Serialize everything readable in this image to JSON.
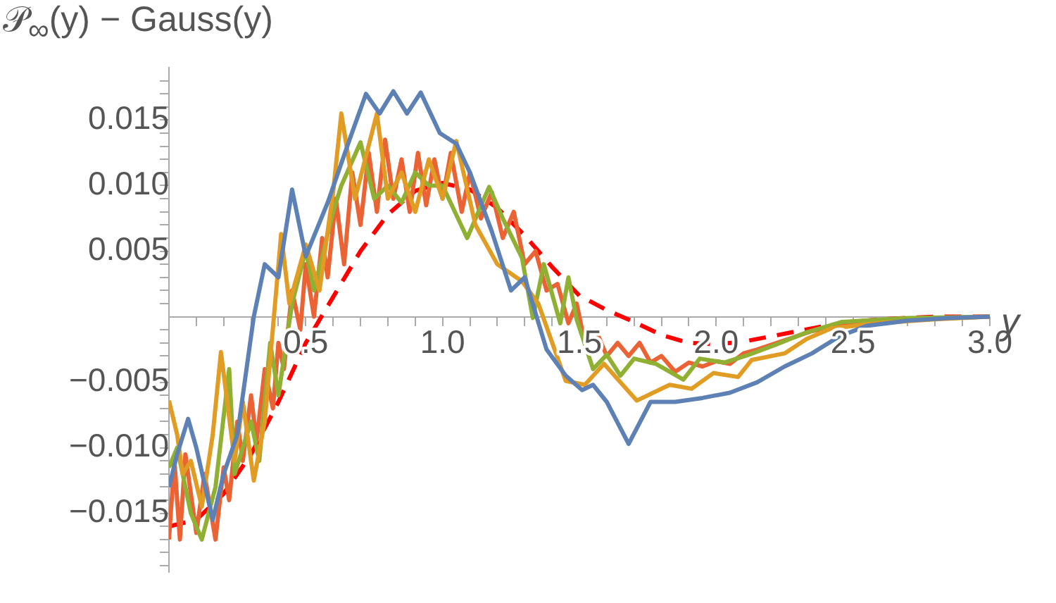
{
  "chart_data": {
    "type": "line",
    "ylabel": "𝒫$_{∞}$(y) − Gauss(y)",
    "xlabel": "y",
    "xlim": [
      0,
      3.0
    ],
    "ylim": [
      -0.0195,
      0.019
    ],
    "xticks": [
      {
        "value": 0.1,
        "label": null
      },
      {
        "value": 0.2,
        "label": null
      },
      {
        "value": 0.3,
        "label": null
      },
      {
        "value": 0.4,
        "label": null
      },
      0.5,
      {
        "value": 0.6,
        "label": null
      },
      {
        "value": 0.7,
        "label": null
      },
      {
        "value": 0.8,
        "label": null
      },
      {
        "value": 0.9,
        "label": null
      },
      {
        "value": 1,
        "label": "1.0"
      },
      {
        "value": 1.1,
        "label": null
      },
      {
        "value": 1.2,
        "label": null
      },
      {
        "value": 1.3,
        "label": null
      },
      {
        "value": 1.4,
        "label": null
      },
      1.5,
      {
        "value": 1.6,
        "label": null
      },
      {
        "value": 1.7,
        "label": null
      },
      {
        "value": 1.8,
        "label": null
      },
      {
        "value": 1.9,
        "label": null
      },
      {
        "value": 2,
        "label": "2.0"
      },
      {
        "value": 2.1,
        "label": null
      },
      {
        "value": 2.2,
        "label": null
      },
      {
        "value": 2.3,
        "label": null
      },
      {
        "value": 2.4,
        "label": null
      },
      2.5,
      {
        "value": 2.6,
        "label": null
      },
      {
        "value": 2.7,
        "label": null
      },
      {
        "value": 2.8,
        "label": null
      },
      {
        "value": 2.9,
        "label": null
      },
      {
        "value": 3,
        "label": "3.0"
      }
    ],
    "yticks": [
      {
        "value": -0.019,
        "label": null
      },
      {
        "value": -0.018,
        "label": null
      },
      {
        "value": -0.017,
        "label": null
      },
      {
        "value": -0.016,
        "label": null
      },
      {
        "value": -0.015,
        "label": "−0.015"
      },
      {
        "value": -0.014,
        "label": null
      },
      {
        "value": -0.013,
        "label": null
      },
      {
        "value": -0.012,
        "label": null
      },
      {
        "value": -0.011,
        "label": null
      },
      {
        "value": -0.01,
        "label": "−0.010"
      },
      {
        "value": -0.009,
        "label": null
      },
      {
        "value": -0.008,
        "label": null
      },
      {
        "value": -0.007,
        "label": null
      },
      {
        "value": -0.006,
        "label": null
      },
      {
        "value": -0.005,
        "label": "−0.005"
      },
      {
        "value": -0.004,
        "label": null
      },
      {
        "value": -0.003,
        "label": null
      },
      {
        "value": -0.002,
        "label": null
      },
      {
        "value": -0.001,
        "label": null
      },
      {
        "value": 0.001,
        "label": null
      },
      {
        "value": 0.002,
        "label": null
      },
      {
        "value": 0.003,
        "label": null
      },
      {
        "value": 0.004,
        "label": null
      },
      0.005,
      {
        "value": 0.006,
        "label": null
      },
      {
        "value": 0.007,
        "label": null
      },
      {
        "value": 0.008,
        "label": null
      },
      {
        "value": 0.009,
        "label": null
      },
      {
        "value": 0.01,
        "label": "0.010"
      },
      {
        "value": 0.011,
        "label": null
      },
      {
        "value": 0.012,
        "label": null
      },
      {
        "value": 0.013,
        "label": null
      },
      {
        "value": 0.014,
        "label": null
      },
      0.015,
      {
        "value": 0.016,
        "label": null
      },
      {
        "value": 0.017,
        "label": null
      },
      {
        "value": 0.018,
        "label": null
      }
    ],
    "grid": false,
    "legend": false,
    "marker": "none",
    "line_style": "solid",
    "series": [
      {
        "color": "#5e81b5",
        "x": [
          0,
          0.03,
          0.07,
          0.1,
          0.16,
          0.2,
          0.25,
          0.31,
          0.35,
          0.4,
          0.45,
          0.5,
          0.58,
          0.66,
          0.72,
          0.77,
          0.82,
          0.87,
          0.92,
          0.99,
          1.05,
          1.1,
          1.18,
          1.25,
          1.3,
          1.38,
          1.45,
          1.51,
          1.55,
          1.6,
          1.68,
          1.76,
          1.85,
          1.95,
          2.05,
          2.15,
          2.25,
          2.35,
          2.45,
          2.55,
          2.7,
          2.85,
          3.0
        ],
        "values": [
          -0.013,
          -0.0105,
          -0.0078,
          -0.01,
          -0.0155,
          -0.012,
          -0.009,
          0,
          0.004,
          0.003,
          0.0097,
          0.0046,
          0.0087,
          0.0135,
          0.017,
          0.0155,
          0.0172,
          0.0155,
          0.0171,
          0.014,
          0.0132,
          0.011,
          0.0065,
          0.002,
          0.003,
          -0.0025,
          -0.0045,
          -0.0056,
          -0.0052,
          -0.0065,
          -0.0097,
          -0.0065,
          -0.0065,
          -0.0062,
          -0.0058,
          -0.005,
          -0.0038,
          -0.0028,
          -0.0015,
          -0.0007,
          -0.0003,
          -0.0001,
          0
        ]
      },
      {
        "color": "#e19c24",
        "x": [
          0,
          0.03,
          0.05,
          0.08,
          0.12,
          0.16,
          0.19,
          0.24,
          0.27,
          0.31,
          0.35,
          0.41,
          0.44,
          0.5,
          0.55,
          0.6,
          0.63,
          0.68,
          0.76,
          0.8,
          0.85,
          0.9,
          0.95,
          1.0,
          1.05,
          1.12,
          1.2,
          1.29,
          1.35,
          1.45,
          1.52,
          1.59,
          1.71,
          1.83,
          1.91,
          1.99,
          2.08,
          2.13,
          2.25,
          2.33,
          2.42,
          2.59,
          2.8,
          3.0
        ],
        "values": [
          -0.0064,
          -0.009,
          -0.012,
          -0.011,
          -0.0145,
          -0.009,
          -0.0027,
          -0.011,
          -0.0065,
          -0.0125,
          -0.008,
          0.0063,
          0.001,
          0.0055,
          0.002,
          0.0095,
          0.0155,
          0.009,
          0.0155,
          0.009,
          0.011,
          0.008,
          0.012,
          0.009,
          0.0134,
          0.007,
          0.004,
          0.0027,
          0.001,
          -0.0049,
          -0.0052,
          -0.0036,
          -0.0064,
          -0.0052,
          -0.0055,
          -0.0043,
          -0.0046,
          -0.0033,
          -0.0028,
          -0.0017,
          -0.0009,
          -0.0005,
          -0.0002,
          0
        ]
      },
      {
        "color": "#8fb032",
        "x": [
          0,
          0.03,
          0.08,
          0.12,
          0.17,
          0.22,
          0.24,
          0.3,
          0.33,
          0.37,
          0.4,
          0.45,
          0.5,
          0.53,
          0.6,
          0.63,
          0.7,
          0.75,
          0.8,
          0.85,
          0.9,
          0.95,
          1.0,
          1.09,
          1.17,
          1.22,
          1.29,
          1.33,
          1.37,
          1.43,
          1.46,
          1.49,
          1.55,
          1.6,
          1.65,
          1.7,
          1.78,
          1.83,
          1.88,
          1.94,
          2.03,
          2.12,
          2.21,
          2.33,
          2.46,
          2.7,
          3.0
        ],
        "values": [
          -0.0115,
          -0.01,
          -0.015,
          -0.017,
          -0.013,
          -0.004,
          -0.012,
          -0.008,
          -0.011,
          -0.002,
          -0.006,
          0.001,
          0.0051,
          0.002,
          0.008,
          0.01,
          0.0133,
          0.009,
          0.01,
          0.0087,
          0.011,
          0.01,
          0.01,
          0.006,
          0.0099,
          0.0075,
          0.0045,
          -0.0001,
          0.004,
          -0.0005,
          0.003,
          -0.0002,
          -0.004,
          -0.0029,
          -0.0045,
          -0.0032,
          -0.0036,
          -0.0042,
          -0.0048,
          -0.0032,
          -0.0035,
          -0.0029,
          -0.0022,
          -0.0012,
          -0.0004,
          -0.0001,
          0
        ]
      },
      {
        "color": "#eb6235",
        "x": [
          0,
          0.02,
          0.04,
          0.06,
          0.1,
          0.13,
          0.17,
          0.2,
          0.22,
          0.25,
          0.27,
          0.3,
          0.32,
          0.35,
          0.38,
          0.4,
          0.42,
          0.45,
          0.48,
          0.5,
          0.53,
          0.56,
          0.58,
          0.61,
          0.64,
          0.67,
          0.7,
          0.73,
          0.76,
          0.79,
          0.82,
          0.85,
          0.88,
          0.91,
          0.94,
          0.97,
          1.0,
          1.03,
          1.07,
          1.1,
          1.14,
          1.18,
          1.22,
          1.26,
          1.3,
          1.34,
          1.38,
          1.42,
          1.46,
          1.49,
          1.52,
          1.56,
          1.6,
          1.64,
          1.68,
          1.72,
          1.76,
          1.8,
          1.85,
          1.9,
          1.95,
          2.0,
          2.05,
          2.1,
          2.15,
          2.25,
          2.35,
          2.5,
          2.7,
          3.0
        ],
        "values": [
          -0.017,
          -0.011,
          -0.017,
          -0.0105,
          -0.0165,
          -0.012,
          -0.017,
          -0.0115,
          -0.014,
          -0.008,
          -0.011,
          -0.006,
          -0.0095,
          -0.004,
          -0.007,
          -0.002,
          -0.004,
          0.002,
          -0.001,
          0.004,
          0,
          0.006,
          0.003,
          0.009,
          0.004,
          0.011,
          0.007,
          0.0125,
          0.008,
          0.0135,
          0.009,
          0.012,
          0.008,
          0.0125,
          0.0085,
          0.012,
          0.009,
          0.0125,
          0.008,
          0.011,
          0.0075,
          0.0095,
          0.006,
          0.008,
          0.004,
          0.005,
          0.002,
          0.0025,
          -0.0005,
          0.001,
          -0.002,
          -0.001,
          -0.003,
          -0.002,
          -0.003,
          -0.002,
          -0.0035,
          -0.003,
          -0.0042,
          -0.0035,
          -0.0038,
          -0.0034,
          -0.0036,
          -0.0028,
          -0.0025,
          -0.0018,
          -0.0011,
          -0.0005,
          -0.0002,
          0
        ]
      },
      {
        "color": "#ff0000",
        "line_style": "dashed",
        "x": [
          0,
          0.1,
          0.2,
          0.3,
          0.4,
          0.5,
          0.6,
          0.7,
          0.8,
          0.9,
          1.0,
          1.1,
          1.2,
          1.3,
          1.4,
          1.5,
          1.6,
          1.7,
          1.8,
          1.9,
          2.0,
          2.1,
          2.2,
          2.3,
          2.4,
          2.5,
          2.6,
          2.7,
          2.8,
          3.0
        ],
        "values": [
          -0.016,
          -0.0155,
          -0.0135,
          -0.0105,
          -0.0065,
          -0.002,
          0.0015,
          0.005,
          0.0078,
          0.0096,
          0.0102,
          0.0097,
          0.0083,
          0.0062,
          0.0038,
          0.0016,
          0.0005,
          -0.0004,
          -0.0014,
          -0.002,
          -0.0021,
          -0.0019,
          -0.0015,
          -0.0011,
          -0.0007,
          -0.0004,
          -0.0002,
          -0.0001,
          0,
          0
        ]
      }
    ]
  }
}
